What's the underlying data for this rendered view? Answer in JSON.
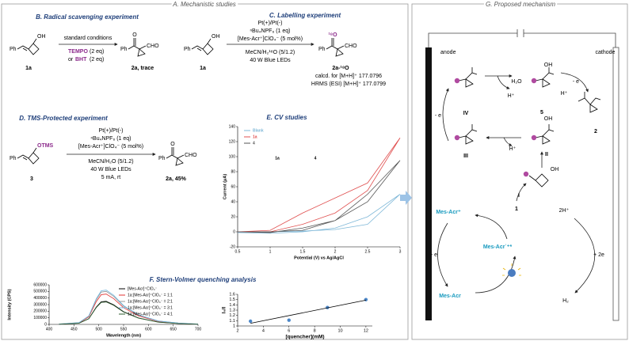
{
  "header": {
    "left": "A. Mechanistic studies",
    "right": "G. Proposed mechanism"
  },
  "b": {
    "title": "B. Radical scavenging experiment",
    "ph": "Ph",
    "oh": "OH",
    "reactant": "1a",
    "conditions": "standard conditions",
    "tempo": "TEMPO",
    "tempo_eq": "(2 eq)",
    "or": "or",
    "bht": "BHT",
    "bht_eq": "(2 eq)",
    "product_ph": "Ph",
    "product_o": "O",
    "cho": "CHO",
    "product": "2a, trace"
  },
  "c": {
    "title": "C. Labelling experiment",
    "ph": "Ph",
    "oh": "OH",
    "reactant": "1a",
    "conditions": [
      "Pt(+)/Pt(-)",
      "ⁿBu₄NPF₆ (1 eq)",
      "[Mes-Acr⁺]ClO₄⁻ (5 mol%)",
      "MeCN/H₂¹⁸O (5/1.2)",
      "40 W Blue LEDs"
    ],
    "product_ph": "Ph",
    "label_o": "¹⁸O",
    "cho": "CHO",
    "product": "2a-¹⁸O",
    "calcd": "calcd. for [M+H]⁺ 177.0796",
    "hrms": "HRMS (ESI) [M+H]⁺ 177.0799"
  },
  "d": {
    "title": "D. TMS-Protected experiment",
    "ph": "Ph",
    "otms": "OTMS",
    "reactant": "3",
    "conditions": [
      "Pt(+)/Pt(-)",
      "ⁿBu₄NPF₆ (1 eq)",
      "[Mes-Acr⁺]ClO₄⁻ (5 mol%)",
      "MeCN/H₂O (5/1.2)",
      "40 W Blue LEDs",
      "5 mA, rt"
    ],
    "product_ph": "Ph",
    "product_o": "O",
    "cho": "CHO",
    "product": "2a, 45%"
  },
  "f_title": "F. Stern-Volmer quenching analysis",
  "g": {
    "anode": "anode",
    "cathode": "cathode",
    "labels": [
      "H₂O",
      "H⁺",
      "- e",
      "H⁺",
      "- e",
      "H⁺",
      "IV",
      "5",
      "2",
      "III",
      "II",
      "I",
      "OH",
      "OH",
      "OH",
      "Mes-Acr⁺",
      "1",
      "Mes-Acr˙⁺*",
      "Mes-Acr",
      "- e",
      "2H⁺",
      "+ 2e",
      "H₂"
    ]
  },
  "chart_data": [
    {
      "type": "line",
      "title": "E. CV studies",
      "x_label": "Potential (V) vs Ag/AgCl",
      "y_label": "Current (μA)",
      "x": [
        0.5,
        1,
        1.5,
        2,
        2.5,
        3,
        2.5,
        2,
        1.5,
        1,
        0.5
      ],
      "series": [
        {
          "name": "Blank",
          "color": "#7fb8d8",
          "values": [
            0,
            0,
            1,
            3,
            10,
            50,
            20,
            5,
            0,
            -2,
            -1
          ]
        },
        {
          "name": "1a",
          "color": "#e05050",
          "values": [
            0,
            2,
            25,
            45,
            65,
            125,
            55,
            25,
            10,
            0,
            0
          ]
        },
        {
          "name": "4",
          "color": "#555555",
          "values": [
            0,
            0,
            2,
            15,
            50,
            95,
            40,
            15,
            5,
            -1,
            0
          ]
        }
      ],
      "annotations": [
        "1a",
        "4"
      ],
      "xlim": [
        0.5,
        3
      ],
      "xticks": [
        0.5,
        1,
        1.5,
        2,
        2.5,
        3
      ],
      "ylim": [
        -20,
        140
      ],
      "yticks": [
        -20,
        0,
        20,
        40,
        60,
        80,
        100,
        120,
        140
      ],
      "legend": "upper left"
    },
    {
      "type": "line",
      "x_label": "Wavelength (nm)",
      "y_label": "Intensity (CPS)",
      "x": [
        420,
        460,
        480,
        495,
        505,
        515,
        530,
        550,
        580,
        620,
        660,
        700
      ],
      "series": [
        {
          "name": "[Mes-Acr]⁺ClO₄⁻",
          "color": "#000000",
          "values": [
            3500,
            17500,
            87500,
            262500,
            343000,
            350000,
            297500,
            192500,
            98000,
            35000,
            14000,
            3500
          ]
        },
        {
          "name": "1a:[Mes-Acr]⁺ClO₄⁻ = 1:1",
          "color": "#e03030",
          "values": [
            4600,
            23000,
            115000,
            345000,
            450800,
            460000,
            391000,
            253000,
            128800,
            46000,
            18400,
            4600
          ]
        },
        {
          "name": "1a:[Mes-Acr]⁺ClO₄⁻ = 2:1",
          "color": "#999999",
          "values": [
            5000,
            25000,
            125000,
            375000,
            490000,
            500000,
            425000,
            275000,
            140000,
            50000,
            20000,
            5000
          ]
        },
        {
          "name": "1a:[Mes-Acr]⁺ClO₄⁻ = 3:1",
          "color": "#6fb7e0",
          "values": [
            5200,
            26000,
            130000,
            390000,
            509600,
            520000,
            442000,
            286000,
            145600,
            52000,
            20800,
            5200
          ]
        },
        {
          "name": "1a:[Mes-Acr]⁺ClO₄⁻ = 4:1",
          "color": "#2f5d2f",
          "values": [
            3400,
            17000,
            85000,
            255000,
            333200,
            340000,
            289000,
            187000,
            95200,
            34000,
            13600,
            3400
          ]
        }
      ],
      "xlim": [
        400,
        700
      ],
      "xticks": [
        400,
        450,
        500,
        550,
        600,
        650,
        700
      ],
      "ylim": [
        0,
        600000
      ],
      "yticks": [
        0,
        100000,
        200000,
        300000,
        400000,
        500000,
        600000
      ],
      "legend": "upper right"
    },
    {
      "type": "scatter",
      "x_label": "[quencher](mM)",
      "y_label": "I₀/I",
      "x": [
        3,
        6,
        9,
        12
      ],
      "series": [
        {
          "color": "#4a86c8",
          "values": [
            1.09,
            1.11,
            1.35,
            1.5
          ]
        }
      ],
      "trendline": {
        "x": [
          3,
          12
        ],
        "values": [
          1.05,
          1.49
        ],
        "color": "#000000"
      },
      "xlim": [
        2,
        12.5
      ],
      "xticks": [
        2,
        4,
        6,
        8,
        10,
        12
      ],
      "ylim": [
        1,
        1.6
      ],
      "yticks": [
        1,
        1.1,
        1.2,
        1.3,
        1.4,
        1.5,
        1.6
      ]
    }
  ]
}
